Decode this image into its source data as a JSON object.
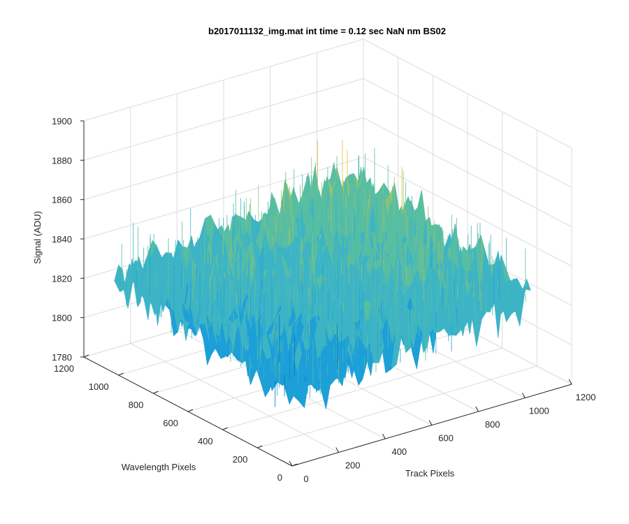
{
  "chart_data": {
    "type": "surface",
    "title": "b2017011132_img.mat int time = 0.12 sec  NaN nm BS02",
    "xlabel": "Track Pixels",
    "ylabel": "Wavelength Pixels",
    "zlabel": "Signal (ADU)",
    "xlim": [
      0,
      1200
    ],
    "ylim": [
      0,
      1200
    ],
    "zlim": [
      1780,
      1900
    ],
    "x_ticks": [
      "0",
      "200",
      "400",
      "600",
      "800",
      "1000",
      "1200"
    ],
    "y_ticks": [
      "0",
      "200",
      "400",
      "600",
      "800",
      "1000",
      "1200"
    ],
    "z_ticks": [
      "1780",
      "1800",
      "1820",
      "1840",
      "1860",
      "1880",
      "1900"
    ],
    "surface_extent": {
      "x": [
        0,
        1024
      ],
      "y": [
        0,
        1024
      ]
    },
    "signal_mean_near_origin": 1815,
    "signal_mean_far_corner": 1845,
    "noise_span": 25,
    "colormap": [
      "#0072bd",
      "#1d9fd8",
      "#3db4c6",
      "#58bea2",
      "#93c56c",
      "#d8c03a"
    ],
    "grid": true
  }
}
